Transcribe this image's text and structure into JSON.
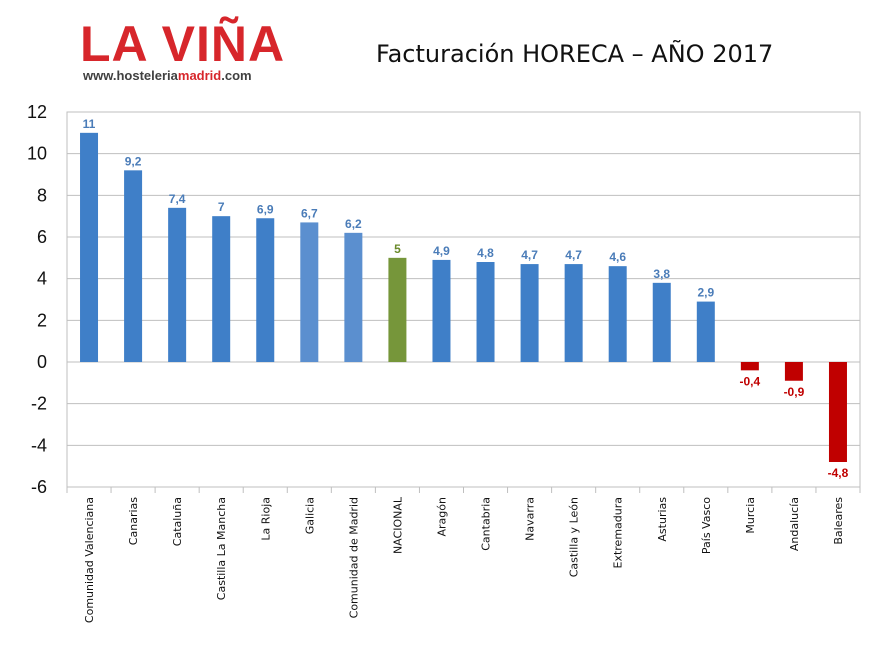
{
  "logo": {
    "title": "LA VIÑA",
    "url_prefix": "www.hosteleria",
    "url_highlight": "madrid",
    "url_suffix": ".com"
  },
  "chart_data": {
    "type": "bar",
    "title": "Facturación HORECA – AÑO 2017",
    "xlabel": "",
    "ylabel": "",
    "ylim": [
      -6,
      12
    ],
    "yticks": [
      12,
      10,
      8,
      6,
      4,
      2,
      0,
      -2,
      -4,
      -6
    ],
    "grid": true,
    "categories": [
      "Comunidad Valenciana",
      "Canarias",
      "Cataluña",
      "Castilla La Mancha",
      "La Rioja",
      "Galicia",
      "Comunidad de Madrid",
      "NACIONAL",
      "Aragón",
      "Cantabria",
      "Navarra",
      "Castilla y León",
      "Extremadura",
      "Asturias",
      "País Vasco",
      "Murcia",
      "Andalucía",
      "Baleares"
    ],
    "values": [
      11,
      9.2,
      7.4,
      7,
      6.9,
      6.7,
      6.2,
      5,
      4.9,
      4.8,
      4.7,
      4.7,
      4.6,
      3.8,
      2.9,
      -0.4,
      -0.9,
      -4.8
    ],
    "labels": [
      "11",
      "9,2",
      "7,4",
      "7",
      "6,9",
      "6,7",
      "6,2",
      "5",
      "4,9",
      "4,8",
      "4,7",
      "4,7",
      "4,6",
      "3,8",
      "2,9",
      "-0,4",
      "-0,9",
      "-4,8"
    ],
    "colors": {
      "regional": "#3f7fc8",
      "regional_light": "#5b8fcf",
      "national": "#76963a",
      "negative": "#c00000",
      "label_positive": "#4a7cb8",
      "label_national": "#6a8a2a",
      "label_negative": "#c00000"
    },
    "highlight": {
      "national_index": 7,
      "light_indices": [
        5,
        6
      ]
    }
  }
}
